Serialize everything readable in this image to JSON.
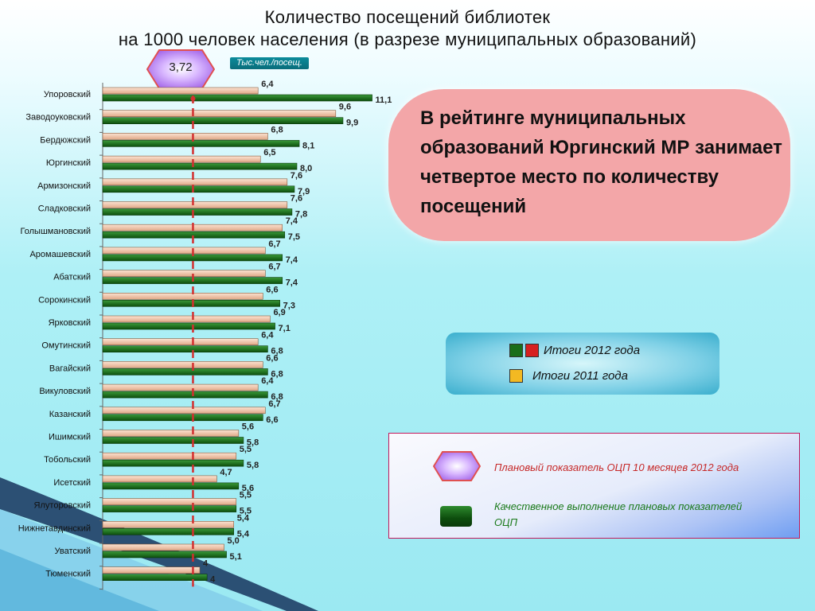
{
  "title": {
    "line1": "Количество посещений библиотек",
    "line2": "на 1000 человек населения (в разрезе муниципальных образований)"
  },
  "plan": {
    "value": "3,72",
    "numeric": 3.72
  },
  "unit_label": "Тыс.чел./посещ.",
  "callout": {
    "text": "В рейтинге муниципальных образований Юргинский МР занимает четвертое место по количеству посещений"
  },
  "legend": {
    "item_2012": "Итоги  2012 года",
    "item_2011": "Итоги  2011 года"
  },
  "notes": {
    "plan": "Плановый показатель ОЦП 10 месяцев  2012 года",
    "quality": "Качественное выполнение плановых показателей ОЦП"
  },
  "colors": {
    "bar_2012": "#1a6e1a",
    "bar_2011": "#f2c6a8",
    "plan_line": "#d32f2f",
    "highlight_red": "#d62020",
    "legend_yellow": "#f3b922",
    "hex_fill": "#b580f0",
    "hex_stroke": "#e05050"
  },
  "chart_data": {
    "type": "bar",
    "orientation": "horizontal",
    "grid": false,
    "categories": [
      "Упоровский",
      "Заводоуковский",
      "Бердюжский",
      "Юргинский",
      "Армизонский",
      "Сладковский",
      "Голышмановский",
      "Аромашевский",
      "Абатский",
      "Сорокинский",
      "Ярковский",
      "Омутинский",
      "Вагайский",
      "Викуловский",
      "Казанский",
      "Ишимский",
      "Тобольский",
      "Исетский",
      "Ялуторовский",
      "Нижнетавдинский",
      "Уватский",
      "Тюменский"
    ],
    "series": [
      {
        "name": "Итоги  2011 года",
        "values": [
          6.4,
          9.6,
          6.8,
          6.5,
          7.6,
          7.6,
          7.4,
          6.7,
          6.7,
          6.6,
          6.9,
          6.4,
          6.6,
          6.4,
          6.7,
          5.6,
          5.5,
          4.7,
          5.5,
          5.4,
          5.0,
          4.0
        ],
        "labels": [
          "6,4",
          "9,6",
          "6,8",
          "6,5",
          "7,6",
          "7,6",
          "7,4",
          "6,7",
          "6,7",
          "6,6",
          "6,9",
          "6,4",
          "6,6",
          "6,4",
          "6,7",
          "5,6",
          "5,5",
          "4,7",
          "5,5",
          "5,4",
          "5,0",
          "4"
        ]
      },
      {
        "name": "Итоги  2012 года",
        "values": [
          11.1,
          9.9,
          8.1,
          8.0,
          7.9,
          7.8,
          7.5,
          7.4,
          7.4,
          7.3,
          7.1,
          6.8,
          6.8,
          6.8,
          6.6,
          5.8,
          5.8,
          5.6,
          5.5,
          5.4,
          5.1,
          4.3
        ],
        "labels": [
          "11,1",
          "9,9",
          "8,1",
          "8,0",
          "7,9",
          "7,8",
          "7,5",
          "7,4",
          "7,4",
          "7,3",
          "7,1",
          "6,8",
          "6,8",
          "6,8",
          "6,6",
          "5,8",
          "5,8",
          "5,6",
          "5,5",
          "5,4",
          "5,1",
          "4"
        ]
      }
    ],
    "plan_line": 3.72,
    "xlim": [
      0,
      11.5
    ]
  }
}
